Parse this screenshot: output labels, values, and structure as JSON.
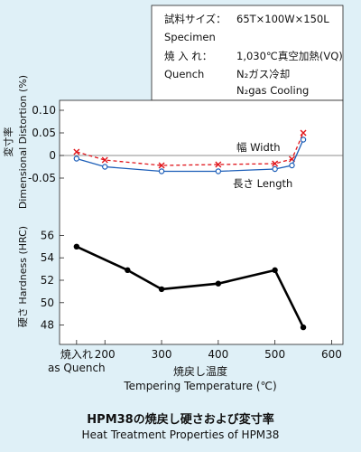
{
  "spec_box": {
    "specimen_label_ja": "試料サイズ：",
    "specimen_value": "65T×100W×150L",
    "specimen_label_en": "Specimen",
    "quench_label_ja": "焼 入 れ：",
    "quench_value_line1": "1,030℃真空加熱(VQ)",
    "quench_label_en": "Quench",
    "quench_value_line2": "N₂ガス冷却",
    "quench_value_line3": "N₂gas Cooling"
  },
  "caption": {
    "title_ja": "HPM38の焼戻し硬さおよび変寸率",
    "title_en": "Heat Treatment Properties of HPM38"
  },
  "chart_data": [
    {
      "type": "line",
      "panel": "distortion",
      "ylabel_ja": "変寸率",
      "ylabel_en": "Dimensional Distortion (%)",
      "ylim": [
        -0.07,
        0.12
      ],
      "yticks": [
        "0.10",
        "0.05",
        "0",
        "-0.05"
      ],
      "ytick_values": [
        0.1,
        0.05,
        0,
        -0.05
      ],
      "reference_line": 0,
      "series": [
        {
          "name": "幅 Width",
          "color": "#e0161c",
          "line_style": "dashed",
          "marker": "x",
          "x": [
            150,
            200,
            300,
            400,
            500,
            530,
            550
          ],
          "y": [
            0.008,
            -0.01,
            -0.022,
            -0.02,
            -0.018,
            -0.008,
            0.05
          ]
        },
        {
          "name": "長さ Length",
          "color": "#1c5eb8",
          "line_style": "solid",
          "marker": "open-circle",
          "x": [
            150,
            200,
            300,
            400,
            500,
            530,
            550
          ],
          "y": [
            -0.007,
            -0.025,
            -0.035,
            -0.035,
            -0.03,
            -0.022,
            0.035
          ]
        }
      ]
    },
    {
      "type": "line",
      "panel": "hardness",
      "ylabel": "硬さ Hardness (HRC)",
      "ylim": [
        47,
        57
      ],
      "yticks": [
        "56",
        "54",
        "52",
        "50",
        "48"
      ],
      "ytick_values": [
        56,
        54,
        52,
        50,
        48
      ],
      "xlabel_ja": "焼戻し温度",
      "xlabel_en": "Tempering Temperature (℃)",
      "xlim": [
        120,
        620
      ],
      "xticks": [
        "焼入れ",
        "200",
        "300",
        "400",
        "500",
        "600"
      ],
      "xtick_values": [
        150,
        200,
        300,
        400,
        500,
        600
      ],
      "xtick_sub": "as Quench",
      "series": [
        {
          "color": "#000000",
          "marker": "filled-circle",
          "x": [
            150,
            240,
            300,
            400,
            500,
            550
          ],
          "y": [
            55.0,
            52.9,
            51.2,
            51.7,
            52.9,
            47.8
          ]
        }
      ]
    }
  ]
}
